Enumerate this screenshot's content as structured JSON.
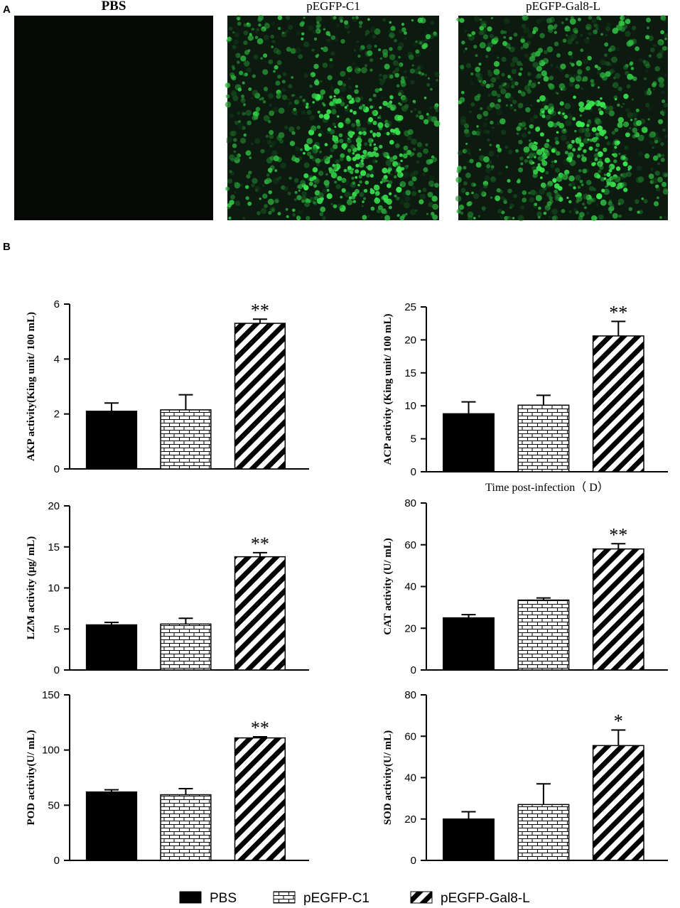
{
  "panel_labels": [
    "A",
    "B"
  ],
  "image_titles": [
    "PBS",
    "pEGFP-C1",
    "pEGFP-Gal8-L"
  ],
  "legend": {
    "names": [
      "PBS",
      "pEGFP-C1",
      "pEGFP-Gal8-L"
    ],
    "fills": [
      "solid",
      "brick",
      "stripes"
    ],
    "color": "#000000"
  },
  "chart_data": [
    {
      "type": "bar",
      "ylabel": "AKP activity(King unit/ 100 mL)",
      "values": [
        2.1,
        2.15,
        5.3
      ],
      "errors": [
        0.3,
        0.55,
        0.15
      ],
      "significance": [
        null,
        null,
        "**"
      ],
      "ylim": [
        0,
        6
      ],
      "yticks": [
        0,
        2,
        4,
        6
      ]
    },
    {
      "type": "bar",
      "ylabel": "ACP activity (King unit/ 100 mL)",
      "xlabel": "Time post-infection（ D）",
      "values": [
        8.8,
        10.1,
        20.6
      ],
      "errors": [
        1.8,
        1.5,
        2.2
      ],
      "significance": [
        null,
        null,
        "**"
      ],
      "ylim": [
        0,
        25
      ],
      "yticks": [
        0,
        5,
        10,
        15,
        20,
        25
      ]
    },
    {
      "type": "bar",
      "ylabel": "LZM activity (μg/ mL)",
      "values": [
        5.5,
        5.6,
        13.8
      ],
      "errors": [
        0.3,
        0.7,
        0.5
      ],
      "significance": [
        null,
        null,
        "**"
      ],
      "ylim": [
        0,
        20
      ],
      "yticks": [
        0,
        5,
        10,
        15,
        20
      ]
    },
    {
      "type": "bar",
      "ylabel": "CAT activity (U/ mL)",
      "values": [
        25,
        33.5,
        58
      ],
      "errors": [
        1.5,
        1,
        2.5
      ],
      "significance": [
        null,
        null,
        "**"
      ],
      "ylim": [
        0,
        80
      ],
      "yticks": [
        0,
        20,
        40,
        60,
        80
      ]
    },
    {
      "type": "bar",
      "ylabel": "POD activity(U/ mL)",
      "values": [
        62,
        59.5,
        111
      ],
      "errors": [
        2,
        5.5,
        1
      ],
      "significance": [
        null,
        null,
        "**"
      ],
      "ylim": [
        0,
        150
      ],
      "yticks": [
        0,
        50,
        100,
        150
      ]
    },
    {
      "type": "bar",
      "ylabel": "SOD activity(U/ mL)",
      "values": [
        20,
        27,
        55.5
      ],
      "errors": [
        3.5,
        10,
        7.5
      ],
      "significance": [
        null,
        null,
        "*"
      ],
      "ylim": [
        0,
        80
      ],
      "yticks": [
        0,
        20,
        40,
        60,
        80
      ]
    }
  ]
}
